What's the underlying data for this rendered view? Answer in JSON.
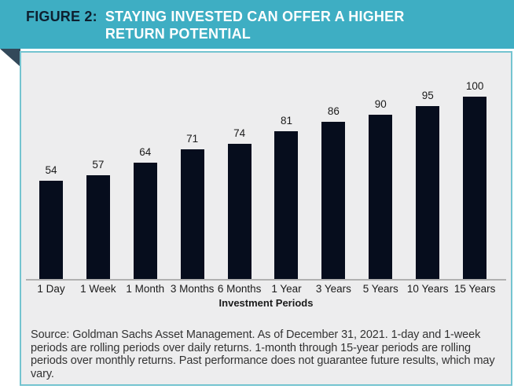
{
  "figure": {
    "label": "FIGURE 2:",
    "title_lines": [
      "STAYING INVESTED CAN OFFER A HIGHER",
      "RETURN POTENTIAL"
    ]
  },
  "chart_data": {
    "type": "bar",
    "categories": [
      "1 Day",
      "1 Week",
      "1 Month",
      "3 Months",
      "6 Months",
      "1 Year",
      "3 Years",
      "5 Years",
      "10 Years",
      "15 Years"
    ],
    "values": [
      54,
      57,
      64,
      71,
      74,
      81,
      86,
      90,
      95,
      100
    ],
    "title": "Staying invested can offer a higher return potential",
    "xlabel": "Investment Periods",
    "ylabel": "",
    "ylim": [
      0,
      105
    ],
    "grid": false,
    "legend": false,
    "value_labels_shown": true
  },
  "source_note": "Source: Goldman Sachs Asset Management. As of December 31, 2021. 1-day and 1-week periods are rolling periods over daily returns. 1-month through 15-year periods are rolling periods over monthly returns. Past performance does not guarantee future results, which may vary.",
  "colors": {
    "header_bg": "#3eaec3",
    "header_label": "#0e2030",
    "title_text": "#ffffff",
    "bar": "#060d1d",
    "fold": "#33495a",
    "box_border": "#74c4d0",
    "box_bg": "#ededee",
    "axis_line": "#b0b0b0"
  }
}
